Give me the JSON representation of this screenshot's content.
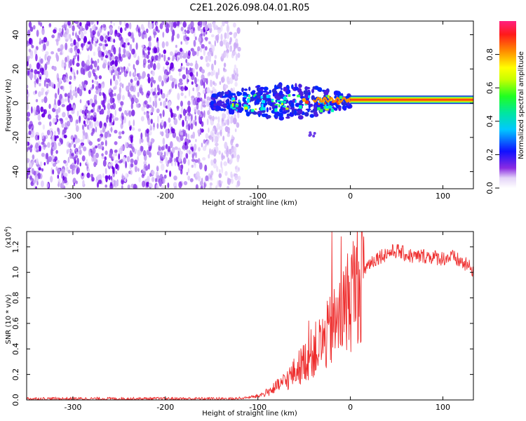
{
  "title": "C2E1.2026.098.04.01.R05",
  "colors": {
    "trace": "#ee2e2e",
    "speckle": "#6a00e6",
    "band": "#ff2a10",
    "background": "#ffffff"
  },
  "chart_data": [
    {
      "id": "spectrogram",
      "type": "heatmap",
      "xlabel": "Height of straight line (km)",
      "ylabel": "Frequency (Hz)",
      "xlim": [
        -350,
        133
      ],
      "ylim": [
        -50,
        48
      ],
      "xticks": [
        -300,
        -200,
        -100,
        0,
        100
      ],
      "xtick_labels": [
        "-300",
        "-200",
        "-100",
        "0",
        "100"
      ],
      "yticks": [
        -40,
        -20,
        0,
        20,
        40
      ],
      "ytick_labels": [
        "-40",
        "-20",
        "0",
        "20",
        "40"
      ],
      "features": {
        "noise_region_x": [
          -350,
          -120
        ],
        "signal_band": {
          "x": [
            0,
            133
          ],
          "frequency": 2
        },
        "scatter_cluster": {
          "x": [
            -150,
            0
          ],
          "frequency_range": [
            -10,
            10
          ]
        },
        "tail_feature": {
          "x": [
            -45,
            -35
          ],
          "frequency": -18
        }
      },
      "colorbar": {
        "label": "Normalized spectral amplitude",
        "range": [
          0.0,
          1.0
        ],
        "ticks": [
          0.0,
          0.2,
          0.4,
          0.6,
          0.8
        ],
        "tick_labels": [
          "0.0",
          "0.2",
          "0.4",
          "0.6",
          "0.8"
        ]
      }
    },
    {
      "id": "snr",
      "type": "line",
      "xlabel": "Height of straight line (km)",
      "ylabel": "SNR (10 * v/v)",
      "scale_note": "(x10",
      "scale_exp": "4",
      "scale_close": ")",
      "xlim": [
        -350,
        133
      ],
      "ylim": [
        0,
        1.32
      ],
      "xticks": [
        -300,
        -200,
        -100,
        0,
        100
      ],
      "xtick_labels": [
        "-300",
        "-200",
        "-100",
        "0",
        "100"
      ],
      "yticks": [
        0.0,
        0.2,
        0.4,
        0.6,
        0.8,
        1.0,
        1.2
      ],
      "ytick_labels": [
        "0.0",
        "0.2",
        "0.4",
        "0.6",
        "0.8",
        "1.0",
        "1.2"
      ],
      "series": [
        {
          "name": "SNR",
          "x": [
            -350,
            -300,
            -250,
            -200,
            -150,
            -120,
            -100,
            -90,
            -80,
            -70,
            -60,
            -50,
            -40,
            -30,
            -20,
            -10,
            0,
            10,
            20,
            30,
            40,
            50,
            60,
            70,
            80,
            90,
            100,
            110,
            120,
            133
          ],
          "y": [
            0.01,
            0.01,
            0.01,
            0.01,
            0.01,
            0.01,
            0.03,
            0.06,
            0.1,
            0.15,
            0.22,
            0.3,
            0.38,
            0.45,
            0.55,
            0.65,
            0.82,
            0.97,
            1.07,
            1.12,
            1.15,
            1.17,
            1.14,
            1.12,
            1.13,
            1.12,
            1.11,
            1.12,
            1.08,
            1.02
          ]
        }
      ],
      "spikes": [
        {
          "x": -20,
          "y": 1.32
        },
        {
          "x": -10,
          "y": 1.28
        },
        {
          "x": -45,
          "y": 0.62
        }
      ]
    }
  ]
}
